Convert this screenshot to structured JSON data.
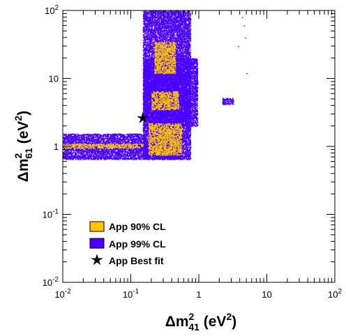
{
  "chart_data": {
    "type": "scatter",
    "title": "",
    "x_scale": "log",
    "y_scale": "log",
    "xlim": [
      0.01,
      100
    ],
    "ylim": [
      0.01,
      100
    ],
    "xlabel": {
      "base": "Δm",
      "sup": "2",
      "sub": "41",
      "unit_open": " (eV",
      "unit_sup": "2",
      "unit_close": ")"
    },
    "ylabel": {
      "base": "Δm",
      "sup": "2",
      "sub": "61",
      "unit_open": " (eV",
      "unit_sup": "2",
      "unit_close": ")"
    },
    "x_ticks": [
      {
        "value": 0.01,
        "base": "10",
        "exp": "-2"
      },
      {
        "value": 0.1,
        "base": "10",
        "exp": "-1"
      },
      {
        "value": 1,
        "base": "1",
        "exp": ""
      },
      {
        "value": 10,
        "base": "10",
        "exp": ""
      },
      {
        "value": 100,
        "base": "10",
        "exp": "2"
      }
    ],
    "y_ticks": [
      {
        "value": 0.01,
        "base": "10",
        "exp": "-2"
      },
      {
        "value": 0.1,
        "base": "10",
        "exp": "-1"
      },
      {
        "value": 1,
        "base": "1",
        "exp": ""
      },
      {
        "value": 10,
        "base": "10",
        "exp": ""
      },
      {
        "value": 100,
        "base": "10",
        "exp": "2"
      }
    ],
    "series": [
      {
        "name": "App 99% CL",
        "color": "#4b00ff",
        "regions": [
          {
            "x": [
              0.01,
              0.55
            ],
            "y": [
              0.65,
              1.55
            ]
          },
          {
            "x": [
              0.15,
              0.75
            ],
            "y": [
              0.65,
              100
            ]
          },
          {
            "x": [
              0.15,
              0.95
            ],
            "y": [
              2.0,
              20
            ]
          },
          {
            "x": [
              2.2,
              3.2
            ],
            "y": [
              4.2,
              5.2
            ]
          }
        ],
        "points": [
          [
            4.3,
            80
          ],
          [
            4.6,
            60
          ],
          [
            4.8,
            40
          ],
          [
            5.0,
            12
          ],
          [
            3.8,
            30
          ]
        ]
      },
      {
        "name": "App 90% CL",
        "color": "#ffc400",
        "regions": [
          {
            "x": [
              0.18,
              0.55
            ],
            "y": [
              0.75,
              2.2
            ]
          },
          {
            "x": [
              0.2,
              0.5
            ],
            "y": [
              3.5,
              6.5
            ]
          },
          {
            "x": [
              0.22,
              0.45
            ],
            "y": [
              12,
              35
            ]
          },
          {
            "x": [
              0.01,
              0.15
            ],
            "y": [
              0.95,
              1.1
            ]
          }
        ],
        "points": []
      }
    ],
    "best_fit": {
      "name": "App Best fit",
      "x": 0.15,
      "y": 2.6,
      "color": "#000000"
    },
    "legend": {
      "placement": "bottom-left",
      "entries": [
        "App 90% CL",
        "App 99% CL",
        "App Best fit"
      ]
    }
  }
}
